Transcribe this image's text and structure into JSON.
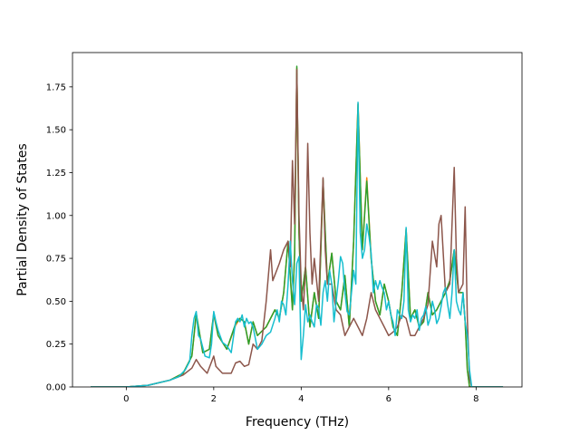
{
  "chart_data": {
    "type": "line",
    "xlabel": "Frequency (THz)",
    "ylabel": "Partial Density of States",
    "xlim": [
      -1.23,
      9.05
    ],
    "ylim": [
      0.0,
      1.95
    ],
    "xticks": [
      0,
      2,
      4,
      6,
      8
    ],
    "yticks": [
      0.0,
      0.25,
      0.5,
      0.75,
      1.0,
      1.25,
      1.5,
      1.75
    ],
    "xtick_labels": [
      "0",
      "2",
      "4",
      "6",
      "8"
    ],
    "ytick_labels": [
      "0.00",
      "0.25",
      "0.50",
      "0.75",
      "1.00",
      "1.25",
      "1.50",
      "1.75"
    ],
    "grid": false,
    "legend": "none",
    "series": [
      {
        "color": "#ff7f0e",
        "x": [
          -0.8,
          0.0,
          0.5,
          1.0,
          1.3,
          1.5,
          1.6,
          1.75,
          1.9,
          2.0,
          2.1,
          2.3,
          2.5,
          2.6,
          2.7,
          2.8,
          2.9,
          3.0,
          3.2,
          3.4,
          3.5,
          3.6,
          3.7,
          3.8,
          3.85,
          3.9,
          3.95,
          4.0,
          4.1,
          4.2,
          4.3,
          4.4,
          4.5,
          4.6,
          4.7,
          4.8,
          4.9,
          5.0,
          5.1,
          5.2,
          5.3,
          5.4,
          5.5,
          5.6,
          5.7,
          5.8,
          5.9,
          6.0,
          6.1,
          6.2,
          6.3,
          6.4,
          6.5,
          6.6,
          6.7,
          6.8,
          6.9,
          7.0,
          7.1,
          7.2,
          7.3,
          7.4,
          7.5,
          7.6,
          7.7,
          7.75,
          7.8,
          7.85,
          7.9,
          8.0,
          8.6
        ],
        "values": [
          0.0,
          0.0,
          0.01,
          0.04,
          0.08,
          0.18,
          0.42,
          0.2,
          0.22,
          0.42,
          0.3,
          0.22,
          0.36,
          0.4,
          0.38,
          0.25,
          0.38,
          0.3,
          0.35,
          0.45,
          0.4,
          0.55,
          0.85,
          0.45,
          0.78,
          1.86,
          0.9,
          0.5,
          0.7,
          0.35,
          0.55,
          0.4,
          1.2,
          0.6,
          0.78,
          0.5,
          0.45,
          0.65,
          0.35,
          0.85,
          1.65,
          0.8,
          1.22,
          0.75,
          0.5,
          0.42,
          0.6,
          0.5,
          0.35,
          0.3,
          0.55,
          0.92,
          0.4,
          0.45,
          0.35,
          0.38,
          0.55,
          0.42,
          0.45,
          0.5,
          0.55,
          0.62,
          0.8,
          0.55,
          0.55,
          0.38,
          0.1,
          0.0,
          0.0,
          0.0,
          0.0
        ]
      },
      {
        "color": "#2ca02c",
        "x": [
          -0.8,
          0.0,
          0.5,
          1.0,
          1.3,
          1.5,
          1.6,
          1.75,
          1.9,
          2.0,
          2.1,
          2.3,
          2.5,
          2.6,
          2.7,
          2.8,
          2.9,
          3.0,
          3.2,
          3.4,
          3.5,
          3.6,
          3.7,
          3.8,
          3.85,
          3.9,
          3.95,
          4.0,
          4.1,
          4.2,
          4.3,
          4.4,
          4.5,
          4.6,
          4.7,
          4.8,
          4.9,
          5.0,
          5.1,
          5.2,
          5.3,
          5.4,
          5.5,
          5.6,
          5.7,
          5.8,
          5.9,
          6.0,
          6.1,
          6.2,
          6.3,
          6.4,
          6.5,
          6.6,
          6.7,
          6.8,
          6.9,
          7.0,
          7.1,
          7.2,
          7.3,
          7.4,
          7.5,
          7.6,
          7.7,
          7.75,
          7.8,
          7.85,
          7.9,
          8.0,
          8.6
        ],
        "values": [
          0.0,
          0.0,
          0.01,
          0.04,
          0.08,
          0.18,
          0.43,
          0.2,
          0.22,
          0.43,
          0.3,
          0.22,
          0.37,
          0.4,
          0.38,
          0.25,
          0.38,
          0.3,
          0.35,
          0.45,
          0.4,
          0.55,
          0.85,
          0.45,
          0.78,
          1.87,
          0.9,
          0.5,
          0.7,
          0.35,
          0.55,
          0.4,
          1.21,
          0.6,
          0.78,
          0.5,
          0.45,
          0.65,
          0.35,
          0.85,
          1.65,
          0.8,
          1.2,
          0.75,
          0.5,
          0.42,
          0.6,
          0.5,
          0.35,
          0.3,
          0.55,
          0.92,
          0.4,
          0.45,
          0.35,
          0.38,
          0.55,
          0.42,
          0.45,
          0.5,
          0.55,
          0.62,
          0.8,
          0.55,
          0.55,
          0.38,
          0.1,
          0.0,
          0.0,
          0.0,
          0.0
        ]
      },
      {
        "color": "#8c564b",
        "x": [
          -0.8,
          0.0,
          0.5,
          1.0,
          1.3,
          1.5,
          1.6,
          1.7,
          1.85,
          2.0,
          2.05,
          2.2,
          2.4,
          2.5,
          2.6,
          2.7,
          2.8,
          2.9,
          3.0,
          3.1,
          3.2,
          3.3,
          3.35,
          3.5,
          3.6,
          3.7,
          3.75,
          3.8,
          3.85,
          3.9,
          3.95,
          4.0,
          4.05,
          4.1,
          4.15,
          4.2,
          4.25,
          4.3,
          4.4,
          4.5,
          4.55,
          4.6,
          4.7,
          4.8,
          4.9,
          5.0,
          5.1,
          5.2,
          5.3,
          5.4,
          5.5,
          5.6,
          5.7,
          5.8,
          5.9,
          6.0,
          6.1,
          6.2,
          6.3,
          6.4,
          6.5,
          6.6,
          6.7,
          6.8,
          6.9,
          7.0,
          7.1,
          7.15,
          7.2,
          7.3,
          7.4,
          7.45,
          7.5,
          7.55,
          7.6,
          7.7,
          7.75,
          7.8,
          7.85,
          7.9,
          8.0,
          8.6
        ],
        "values": [
          0.0,
          0.0,
          0.01,
          0.04,
          0.07,
          0.11,
          0.16,
          0.12,
          0.08,
          0.18,
          0.12,
          0.08,
          0.08,
          0.14,
          0.15,
          0.12,
          0.13,
          0.25,
          0.22,
          0.27,
          0.5,
          0.8,
          0.62,
          0.72,
          0.8,
          0.85,
          0.7,
          1.32,
          0.95,
          1.85,
          1.0,
          0.6,
          0.45,
          0.7,
          1.42,
          0.9,
          0.6,
          0.75,
          0.5,
          1.22,
          0.8,
          0.6,
          0.6,
          0.45,
          0.42,
          0.3,
          0.35,
          0.4,
          0.35,
          0.3,
          0.4,
          0.55,
          0.45,
          0.4,
          0.35,
          0.3,
          0.32,
          0.35,
          0.42,
          0.4,
          0.3,
          0.3,
          0.35,
          0.4,
          0.48,
          0.85,
          0.7,
          0.95,
          1.0,
          0.55,
          0.6,
          0.95,
          1.28,
          0.75,
          0.55,
          0.6,
          1.05,
          0.4,
          0.05,
          0.0,
          0.0,
          0.0
        ]
      },
      {
        "color": "#17becf",
        "x": [
          -0.8,
          0.0,
          0.5,
          1.0,
          1.2,
          1.35,
          1.45,
          1.5,
          1.55,
          1.6,
          1.65,
          1.7,
          1.8,
          1.9,
          1.95,
          2.0,
          2.05,
          2.1,
          2.2,
          2.3,
          2.4,
          2.5,
          2.55,
          2.6,
          2.65,
          2.7,
          2.75,
          2.8,
          2.85,
          2.9,
          3.0,
          3.1,
          3.2,
          3.3,
          3.4,
          3.45,
          3.5,
          3.55,
          3.6,
          3.65,
          3.7,
          3.75,
          3.8,
          3.85,
          3.9,
          3.95,
          4.0,
          4.05,
          4.1,
          4.15,
          4.2,
          4.25,
          4.3,
          4.35,
          4.4,
          4.45,
          4.5,
          4.55,
          4.6,
          4.65,
          4.7,
          4.75,
          4.8,
          4.85,
          4.9,
          4.95,
          5.0,
          5.05,
          5.1,
          5.15,
          5.2,
          5.25,
          5.3,
          5.35,
          5.4,
          5.45,
          5.5,
          5.55,
          5.6,
          5.65,
          5.7,
          5.75,
          5.8,
          5.85,
          5.9,
          5.95,
          6.0,
          6.05,
          6.1,
          6.15,
          6.2,
          6.25,
          6.3,
          6.35,
          6.4,
          6.45,
          6.5,
          6.55,
          6.6,
          6.65,
          6.7,
          6.75,
          6.8,
          6.85,
          6.9,
          6.95,
          7.0,
          7.05,
          7.1,
          7.15,
          7.2,
          7.25,
          7.3,
          7.35,
          7.4,
          7.45,
          7.5,
          7.55,
          7.6,
          7.65,
          7.7,
          7.75,
          7.8,
          7.85,
          7.9,
          8.0,
          8.6
        ],
        "values": [
          0.0,
          0.0,
          0.01,
          0.04,
          0.06,
          0.1,
          0.15,
          0.3,
          0.4,
          0.44,
          0.3,
          0.28,
          0.18,
          0.17,
          0.25,
          0.44,
          0.38,
          0.33,
          0.26,
          0.24,
          0.2,
          0.38,
          0.4,
          0.38,
          0.42,
          0.35,
          0.4,
          0.37,
          0.38,
          0.35,
          0.22,
          0.25,
          0.3,
          0.32,
          0.4,
          0.45,
          0.38,
          0.5,
          0.48,
          0.42,
          0.6,
          0.85,
          0.62,
          0.48,
          0.72,
          0.76,
          0.16,
          0.3,
          0.48,
          0.38,
          0.42,
          0.38,
          0.35,
          0.48,
          0.46,
          0.36,
          0.55,
          0.62,
          0.5,
          0.68,
          0.6,
          0.38,
          0.5,
          0.62,
          0.76,
          0.72,
          0.55,
          0.44,
          0.42,
          0.55,
          0.68,
          0.6,
          1.66,
          0.9,
          0.75,
          0.8,
          0.95,
          0.88,
          0.78,
          0.55,
          0.62,
          0.57,
          0.62,
          0.58,
          0.55,
          0.45,
          0.5,
          0.42,
          0.38,
          0.3,
          0.45,
          0.42,
          0.4,
          0.5,
          0.93,
          0.45,
          0.38,
          0.42,
          0.4,
          0.45,
          0.33,
          0.4,
          0.42,
          0.47,
          0.36,
          0.4,
          0.5,
          0.45,
          0.37,
          0.4,
          0.47,
          0.55,
          0.58,
          0.48,
          0.4,
          0.55,
          0.8,
          0.5,
          0.45,
          0.42,
          0.55,
          0.38,
          0.3,
          0.1,
          0.0,
          0.0,
          0.0
        ]
      }
    ]
  }
}
